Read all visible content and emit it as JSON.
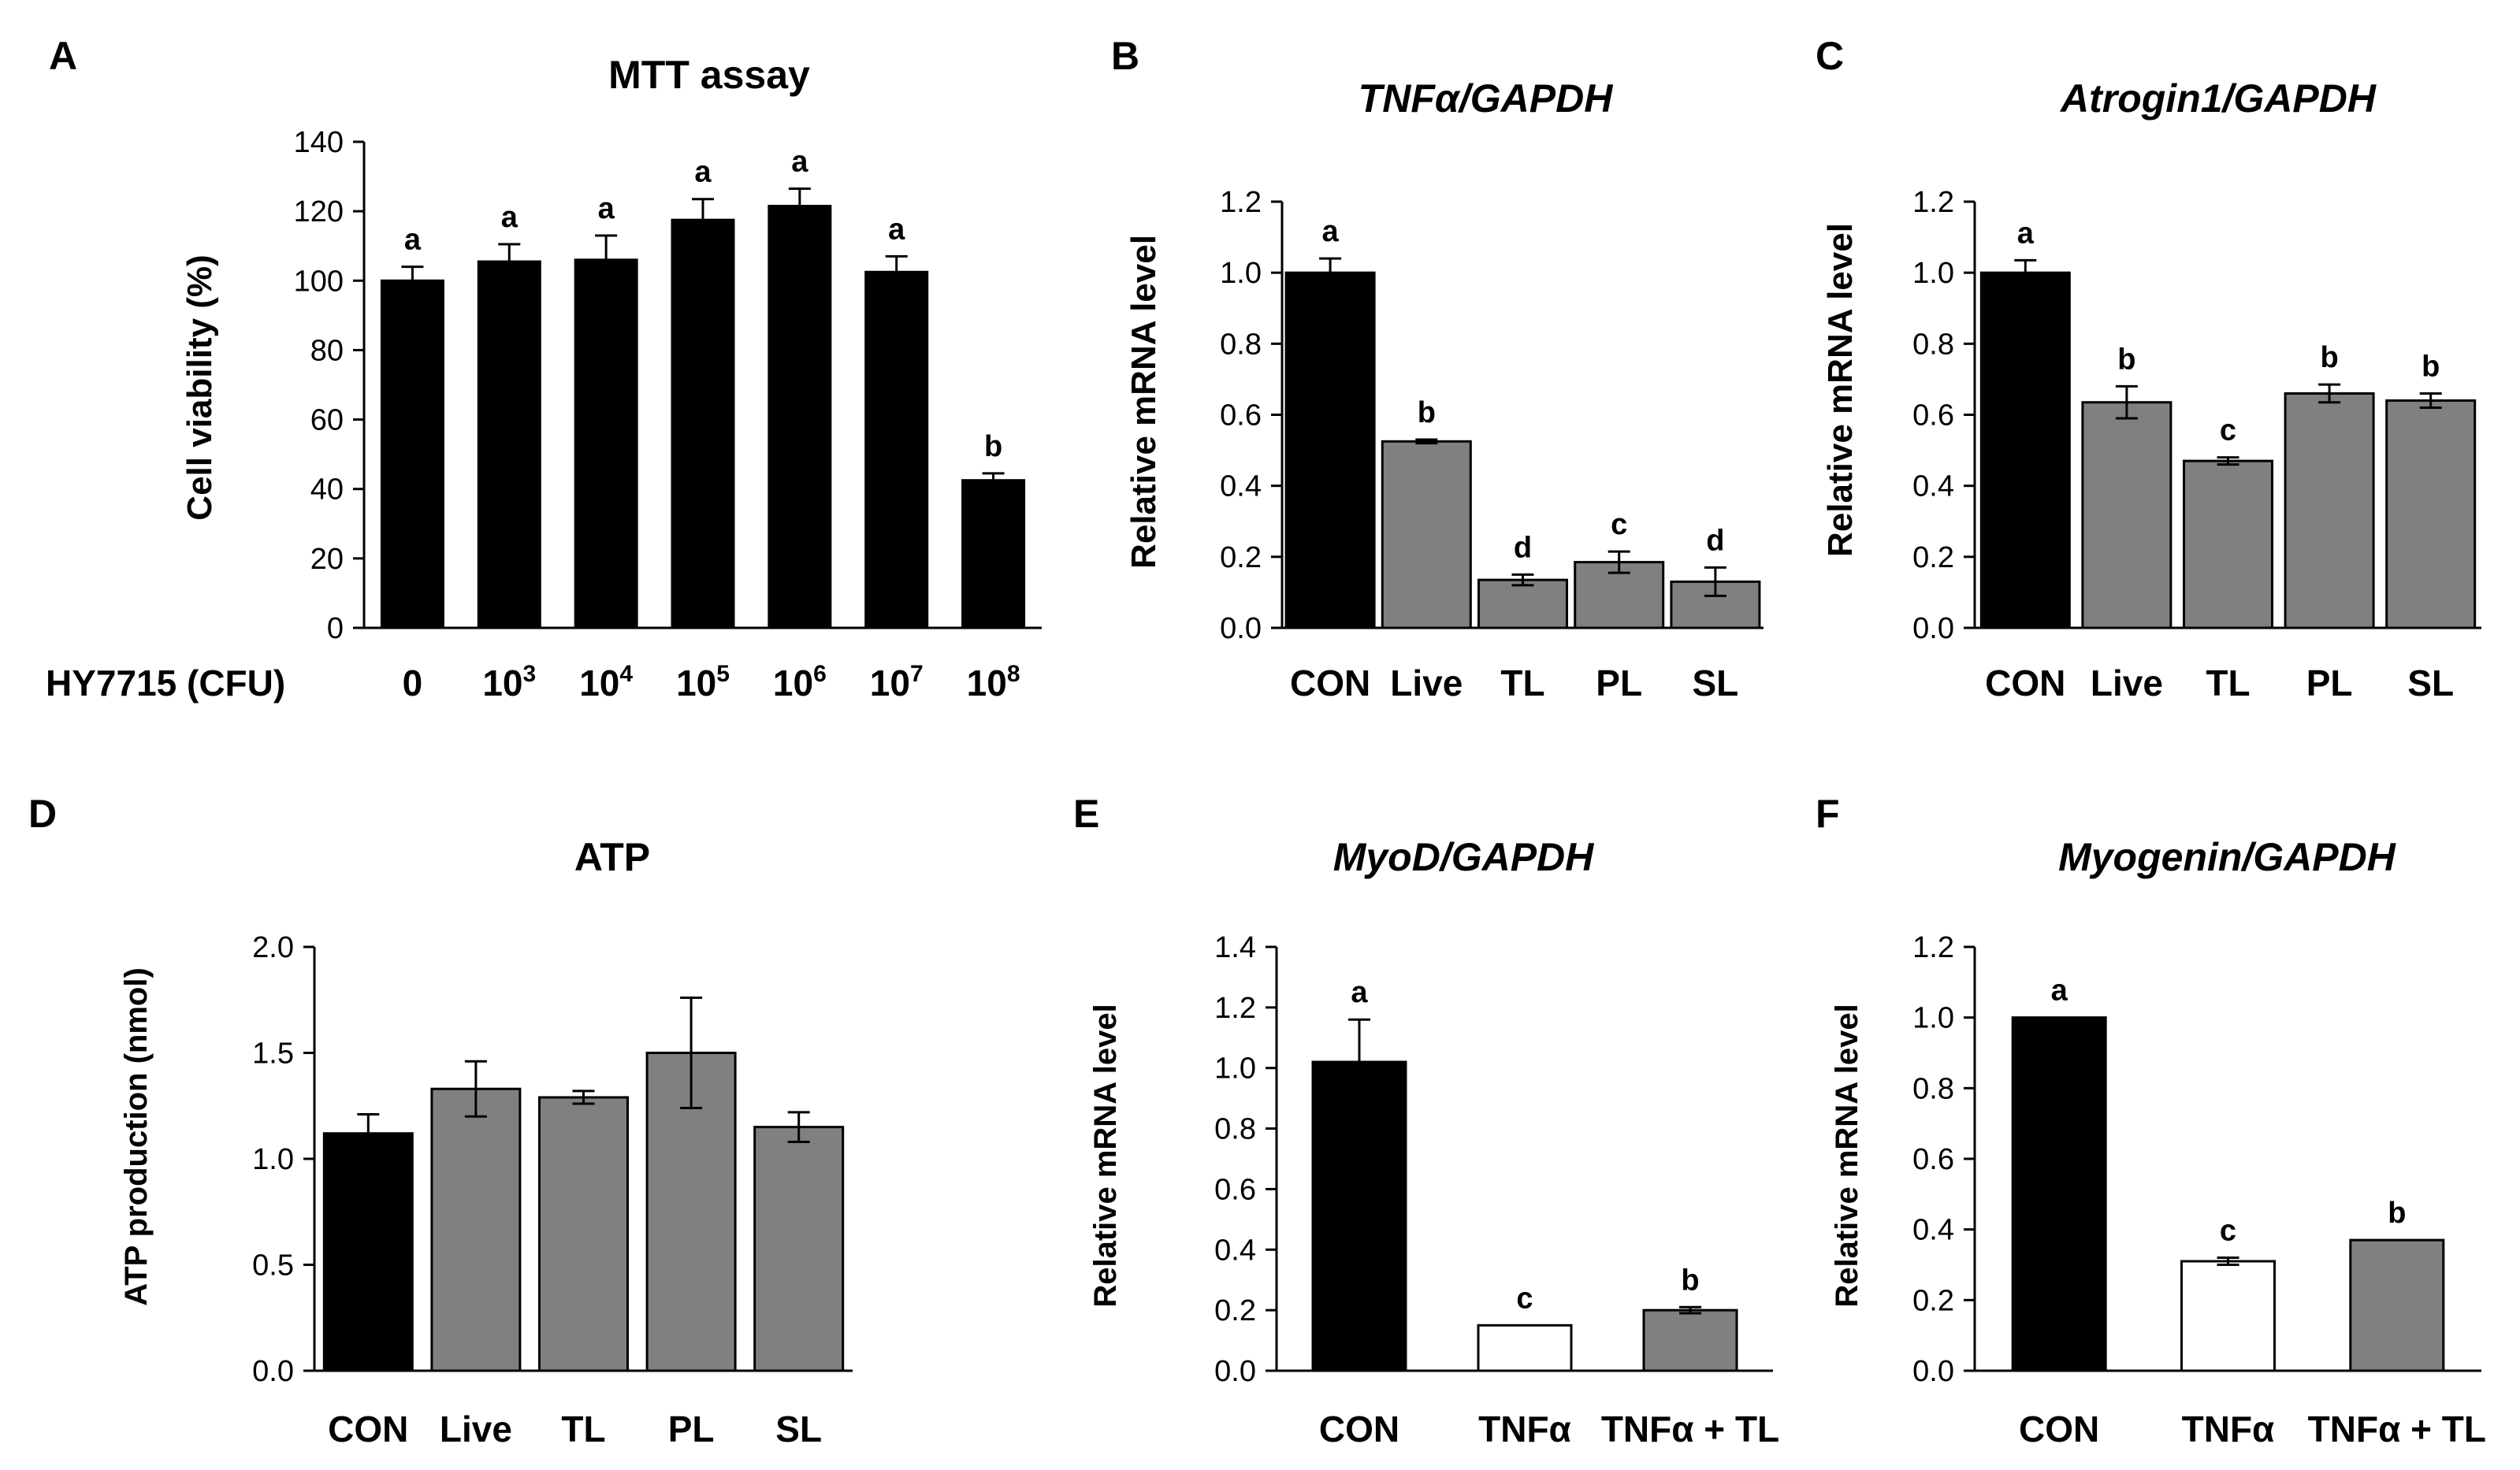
{
  "chart_data": [
    {
      "id": "A",
      "panel": "A",
      "type": "bar",
      "title": "MTT assay",
      "title_italic": false,
      "xlabel": "HY7715 (CFU)",
      "ylabel": "Cell viability (%)",
      "ylim": [
        0,
        140
      ],
      "yticks": [
        0,
        20,
        40,
        60,
        80,
        100,
        120,
        140
      ],
      "ytick_decimals": 0,
      "categories": [
        "0",
        "10^3",
        "10^4",
        "10^5",
        "10^6",
        "10^7",
        "10^8"
      ],
      "category_labels": [
        {
          "base": "0",
          "exp": ""
        },
        {
          "base": "10",
          "exp": "3"
        },
        {
          "base": "10",
          "exp": "4"
        },
        {
          "base": "10",
          "exp": "5"
        },
        {
          "base": "10",
          "exp": "6"
        },
        {
          "base": "10",
          "exp": "7"
        },
        {
          "base": "10",
          "exp": "8"
        }
      ],
      "values": [
        100,
        105.5,
        106,
        117.5,
        121.5,
        102.5,
        42.5
      ],
      "errors": [
        4,
        5,
        7,
        6,
        5,
        4.5,
        2
      ],
      "letters": [
        "a",
        "a",
        "a",
        "a",
        "a",
        "a",
        "b"
      ],
      "colors": [
        "#000000",
        "#000000",
        "#000000",
        "#000000",
        "#000000",
        "#000000",
        "#000000"
      ]
    },
    {
      "id": "B",
      "panel": "B",
      "type": "bar",
      "title": "TNFα/GAPDH",
      "title_italic": true,
      "xlabel": "",
      "ylabel": "Relative mRNA level",
      "ylim": [
        0,
        1.2
      ],
      "yticks": [
        0,
        0.2,
        0.4,
        0.6,
        0.8,
        1.0,
        1.2
      ],
      "ytick_decimals": 1,
      "categories": [
        "CON",
        "Live",
        "TL",
        "PL",
        "SL"
      ],
      "values": [
        1.0,
        0.525,
        0.135,
        0.185,
        0.13
      ],
      "errors": [
        0.04,
        0.005,
        0.015,
        0.03,
        0.04
      ],
      "letters": [
        "a",
        "b",
        "d",
        "c",
        "d"
      ],
      "colors": [
        "#000000",
        "#808080",
        "#808080",
        "#808080",
        "#808080"
      ]
    },
    {
      "id": "C",
      "panel": "C",
      "type": "bar",
      "title": "Atrogin1/GAPDH",
      "title_italic": true,
      "xlabel": "",
      "ylabel": "Relative mRNA level",
      "ylim": [
        0,
        1.2
      ],
      "yticks": [
        0,
        0.2,
        0.4,
        0.6,
        0.8,
        1.0,
        1.2
      ],
      "ytick_decimals": 1,
      "categories": [
        "CON",
        "Live",
        "TL",
        "PL",
        "SL"
      ],
      "values": [
        1.0,
        0.635,
        0.47,
        0.66,
        0.64
      ],
      "errors": [
        0.035,
        0.045,
        0.01,
        0.025,
        0.02
      ],
      "letters": [
        "a",
        "b",
        "c",
        "b",
        "b"
      ],
      "colors": [
        "#000000",
        "#808080",
        "#808080",
        "#808080",
        "#808080"
      ]
    },
    {
      "id": "D",
      "panel": "D",
      "type": "bar",
      "title": "ATP",
      "title_italic": false,
      "xlabel": "",
      "ylabel": "ATP production (nmol)",
      "ylim": [
        0,
        2.0
      ],
      "yticks": [
        0,
        0.5,
        1.0,
        1.5,
        2.0
      ],
      "ytick_decimals": 1,
      "categories": [
        "CON",
        "Live",
        "TL",
        "PL",
        "SL"
      ],
      "values": [
        1.12,
        1.33,
        1.29,
        1.5,
        1.15
      ],
      "errors": [
        0.09,
        0.13,
        0.03,
        0.26,
        0.07
      ],
      "letters": [
        "",
        "",
        "",
        "",
        ""
      ],
      "colors": [
        "#000000",
        "#808080",
        "#808080",
        "#808080",
        "#808080"
      ]
    },
    {
      "id": "E",
      "panel": "E",
      "type": "bar",
      "title": "MyoD/GAPDH",
      "title_italic": true,
      "xlabel": "",
      "ylabel": "Relative mRNA level",
      "ylim": [
        0,
        1.4
      ],
      "yticks": [
        0,
        0.2,
        0.4,
        0.6,
        0.8,
        1.0,
        1.2,
        1.4
      ],
      "ytick_decimals": 1,
      "categories": [
        "CON",
        "TNFα",
        "TNFα + TL"
      ],
      "values": [
        1.02,
        0.15,
        0.2
      ],
      "errors": [
        0.14,
        0,
        0.01
      ],
      "letters": [
        "a",
        "c",
        "b"
      ],
      "colors": [
        "#000000",
        "#ffffff",
        "#808080"
      ]
    },
    {
      "id": "F",
      "panel": "F",
      "type": "bar",
      "title": "Myogenin/GAPDH",
      "title_italic": true,
      "xlabel": "",
      "ylabel": "Relative mRNA level",
      "ylim": [
        0,
        1.2
      ],
      "yticks": [
        0,
        0.2,
        0.4,
        0.6,
        0.8,
        1.0,
        1.2
      ],
      "ytick_decimals": 1,
      "categories": [
        "CON",
        "TNFα",
        "TNFα + TL"
      ],
      "values": [
        1.0,
        0.31,
        0.37
      ],
      "errors": [
        0,
        0.01,
        0
      ],
      "letters": [
        "a",
        "c",
        "b"
      ],
      "colors": [
        "#000000",
        "#ffffff",
        "#808080"
      ]
    }
  ]
}
